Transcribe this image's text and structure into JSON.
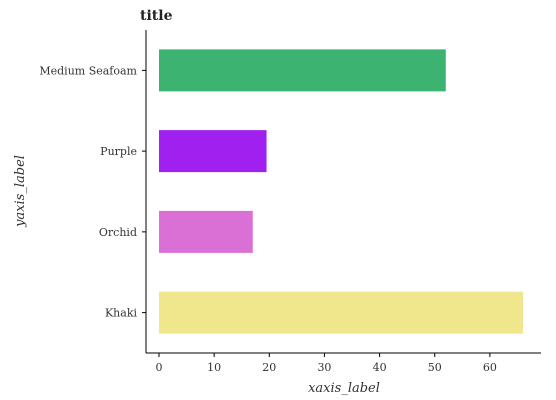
{
  "chart_data": {
    "type": "bar",
    "orientation": "horizontal",
    "title": "title",
    "xlabel": "xaxis_label",
    "ylabel": "yaxis_label",
    "categories": [
      "Khaki",
      "Orchid",
      "Purple",
      "Medium Seafoam"
    ],
    "values": [
      66,
      17,
      19.5,
      52
    ],
    "colors": [
      "#f0e68c",
      "#da70d6",
      "#a020f0",
      "#3cb371"
    ],
    "xlim": [
      0,
      68
    ],
    "xticks": [
      0,
      10,
      20,
      30,
      40,
      50,
      60
    ],
    "grid": false,
    "legend": "none"
  }
}
